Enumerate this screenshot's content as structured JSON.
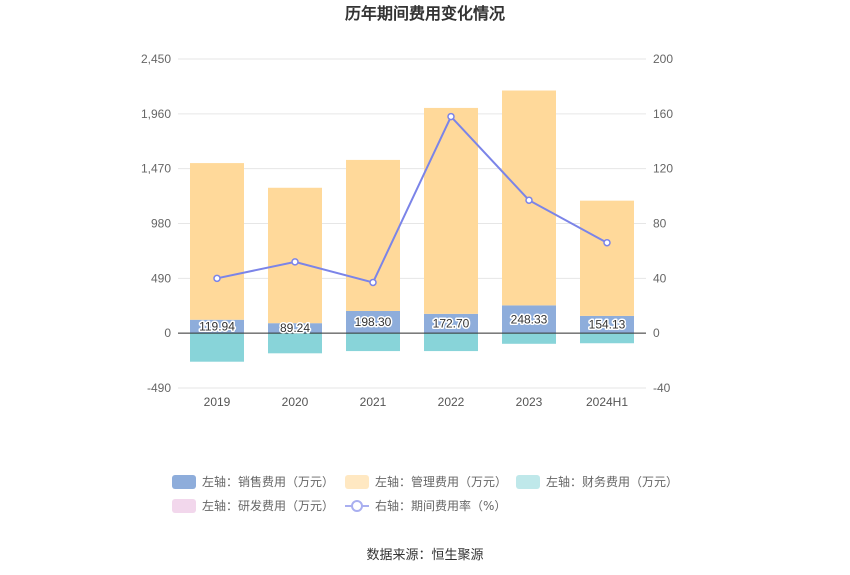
{
  "chart_data": {
    "type": "bar",
    "title": "历年期间费用变化情况",
    "categories": [
      "2019",
      "2020",
      "2021",
      "2022",
      "2023",
      "2024H1"
    ],
    "left_axis": {
      "min": -490,
      "max": 2450,
      "ticks": [
        "2,450",
        "1,960",
        "1,470",
        "980",
        "490",
        "0",
        "-490"
      ]
    },
    "right_axis": {
      "min": -40,
      "max": 200,
      "ticks": [
        "200",
        "160",
        "120",
        "80",
        "40",
        "0",
        "-40"
      ]
    },
    "series": [
      {
        "name": "左轴：销售费用（万元）",
        "axis": "left",
        "kind": "stacked-bar",
        "color": "#8eaddb",
        "values": [
          119.94,
          89.24,
          198.3,
          172.7,
          248.33,
          154.13
        ],
        "labels": [
          "119.94",
          "89.24",
          "198.30",
          "172.70",
          "248.33",
          "154.13"
        ]
      },
      {
        "name": "左轴：管理费用（万元）",
        "axis": "left",
        "kind": "stacked-bar",
        "color": "#ffd99a",
        "values": [
          1400,
          1210,
          1350,
          1840,
          1920,
          1030
        ]
      },
      {
        "name": "左轴：财务费用（万元）",
        "axis": "left",
        "kind": "stacked-bar",
        "color": "#88d4d9",
        "values": [
          -255,
          -180,
          -160,
          -160,
          -95,
          -90
        ]
      },
      {
        "name": "左轴：研发费用（万元）",
        "axis": "left",
        "kind": "stacked-bar",
        "color": "#f2d7ec",
        "values": [
          0,
          0,
          0,
          0,
          0,
          0
        ]
      },
      {
        "name": "右轴：期间费用率（%）",
        "axis": "right",
        "kind": "line",
        "color": "#7b84e8",
        "values": [
          40,
          52,
          37,
          158,
          97,
          66
        ]
      }
    ],
    "legend_position": "bottom",
    "grid": true
  },
  "legend_colors": {
    "s0": "#8eaddb",
    "s1": "#ffe8c2",
    "s2": "#bfe8ea",
    "s3": "#f2d7ec",
    "s4": "#a9aff0"
  },
  "source": "数据来源：恒生聚源"
}
